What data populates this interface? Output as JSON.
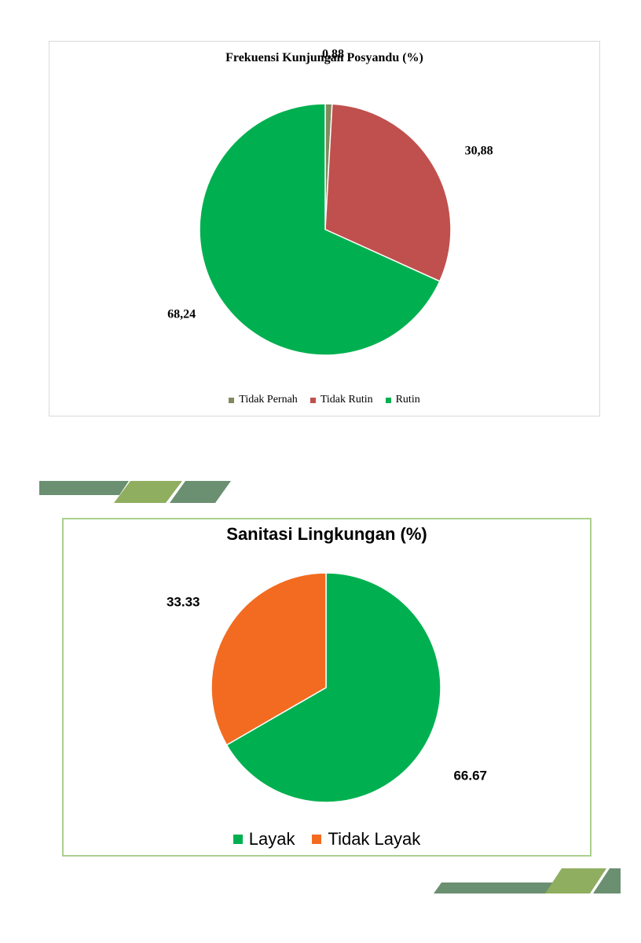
{
  "chart_data": [
    {
      "type": "pie",
      "title": "Frekuensi Kunjungan Posyandu (%)",
      "categories": [
        "Tidak Pernah",
        "Tidak Rutin",
        "Rutin"
      ],
      "values": [
        0.88,
        30.88,
        68.24
      ],
      "value_labels": [
        "0,88",
        "30,88",
        "68,24"
      ],
      "colors": [
        "#7f8a5e",
        "#c0504d",
        "#00b050"
      ],
      "legend_position": "bottom"
    },
    {
      "type": "pie",
      "title": "Sanitasi Lingkungan (%)",
      "categories": [
        "Layak",
        "Tidak Layak"
      ],
      "values": [
        66.67,
        33.33
      ],
      "value_labels": [
        "66.67",
        "33.33"
      ],
      "colors": [
        "#00b050",
        "#f26b21"
      ],
      "legend_position": "bottom"
    }
  ],
  "decoration": {
    "stripe_dark": "#6b8f71",
    "stripe_light": "#8fae5f"
  }
}
